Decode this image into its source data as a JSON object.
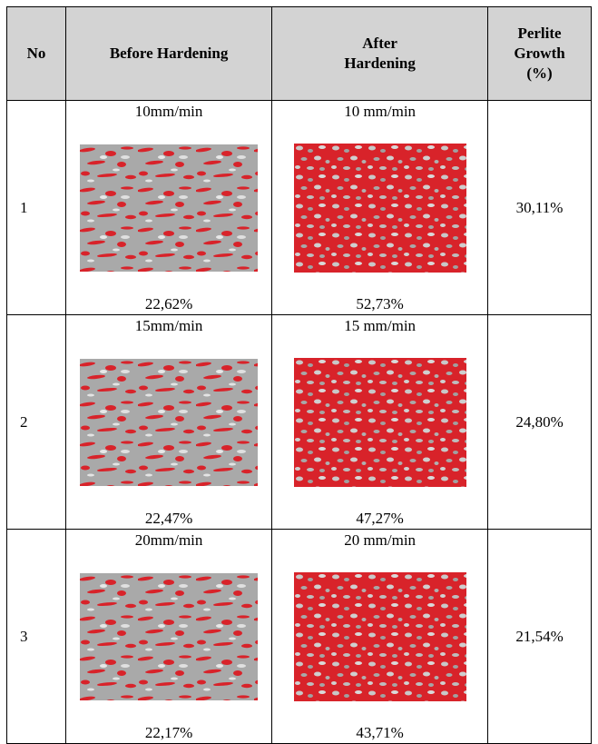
{
  "table": {
    "header": [
      "No",
      "Before Hardening",
      "After Hardening",
      "Perlite Growth (%)"
    ],
    "rows": [
      {
        "no": "1",
        "before_speed": "10mm/min",
        "before_value": "22,62%",
        "after_speed": "10 mm/min",
        "after_value": "52,73%",
        "growth": "30,11%"
      },
      {
        "no": "2",
        "before_speed": "15mm/min",
        "before_value": "22,47%",
        "after_speed": "15 mm/min",
        "after_value": "47,27%",
        "growth": "24,80%"
      },
      {
        "no": "3",
        "before_speed": "20mm/min",
        "before_value": "22,17%",
        "after_speed": "20 mm/min",
        "after_value": "43,71%",
        "growth": "21,54%"
      }
    ]
  }
}
